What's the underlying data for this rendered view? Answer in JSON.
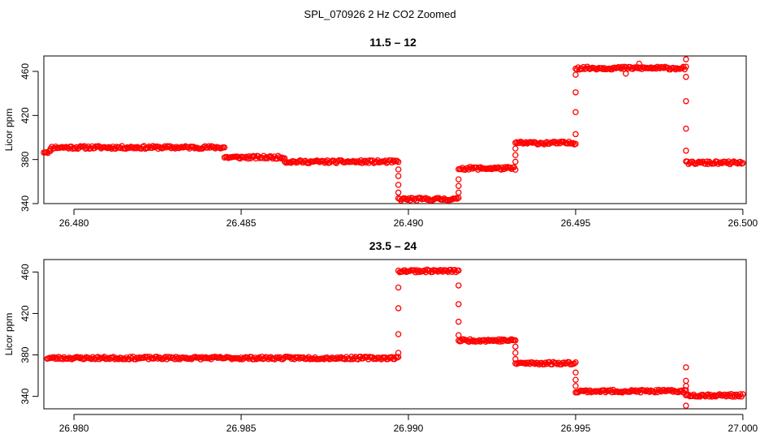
{
  "figure": {
    "suptitle": "SPL_070926  2 Hz CO2 Zoomed"
  },
  "chart_data": [
    {
      "type": "scatter",
      "title": "11.5 – 12",
      "xlabel": "",
      "ylabel": "Licor ppm",
      "xlim": [
        26.4791,
        26.5001
      ],
      "ylim": [
        340,
        474
      ],
      "x_ticks": [
        26.48,
        26.485,
        26.49,
        26.495,
        26.5
      ],
      "x_tick_labels": [
        "26.480",
        "26.485",
        "26.490",
        "26.495",
        "26.500"
      ],
      "y_ticks": [
        340,
        380,
        420,
        460
      ],
      "y_tick_labels": [
        "340",
        "380",
        "420",
        "460"
      ],
      "grid": false,
      "color": "#ff0000",
      "marker": "open-circle",
      "series": [
        {
          "segments": [
            {
              "x_start": 26.4791,
              "x_end": 26.4793,
              "y": 387
            },
            {
              "x_start": 26.4793,
              "x_end": 26.4845,
              "y": 391
            },
            {
              "x_start": 26.4845,
              "x_end": 26.4863,
              "y": 382
            },
            {
              "x_start": 26.4863,
              "x_end": 26.4897,
              "y": 378
            },
            {
              "x_start": 26.4897,
              "x_end": 26.4915,
              "y": 344
            },
            {
              "x_start": 26.4915,
              "x_end": 26.4932,
              "y": 372
            },
            {
              "x_start": 26.4932,
              "x_end": 26.495,
              "y": 395
            },
            {
              "x_start": 26.495,
              "x_end": 26.4983,
              "y": 463
            },
            {
              "x_start": 26.4983,
              "x_end": 26.5,
              "y": 377
            }
          ],
          "transitions": [
            {
              "x": 26.4897,
              "y": [
                371,
                365,
                357,
                350
              ]
            },
            {
              "x": 26.4915,
              "y": [
                350,
                356,
                362
              ]
            },
            {
              "x": 26.4932,
              "y": [
                378,
                384,
                390
              ]
            },
            {
              "x": 26.495,
              "y": [
                403,
                423,
                441,
                457
              ]
            },
            {
              "x": 26.4983,
              "y": [
                471,
                455,
                433,
                408,
                388
              ]
            }
          ],
          "outliers": [
            {
              "x": 26.4965,
              "y": 458
            },
            {
              "x": 26.4969,
              "y": 467
            }
          ]
        }
      ]
    },
    {
      "type": "scatter",
      "title": "23.5 – 24",
      "xlabel": "",
      "ylabel": "Licor ppm",
      "xlim": [
        26.9791,
        27.0001
      ],
      "ylim": [
        328,
        472
      ],
      "x_ticks": [
        26.98,
        26.985,
        26.99,
        26.995,
        27.0
      ],
      "x_tick_labels": [
        "26.980",
        "26.985",
        "26.990",
        "26.995",
        "27.000"
      ],
      "y_ticks": [
        340,
        380,
        420,
        460
      ],
      "y_tick_labels": [
        "340",
        "380",
        "420",
        "460"
      ],
      "grid": false,
      "color": "#ff0000",
      "marker": "open-circle",
      "series": [
        {
          "segments": [
            {
              "x_start": 26.9792,
              "x_end": 26.9897,
              "y": 377
            },
            {
              "x_start": 26.9897,
              "x_end": 26.9915,
              "y": 461
            },
            {
              "x_start": 26.9915,
              "x_end": 26.9932,
              "y": 394
            },
            {
              "x_start": 26.9932,
              "x_end": 26.995,
              "y": 372
            },
            {
              "x_start": 26.995,
              "x_end": 26.9983,
              "y": 345
            },
            {
              "x_start": 26.9983,
              "x_end": 27.0,
              "y": 341
            }
          ],
          "transitions": [
            {
              "x": 26.9897,
              "y": [
                382,
                400,
                425,
                445
              ]
            },
            {
              "x": 26.9915,
              "y": [
                447,
                429,
                412,
                399
              ]
            },
            {
              "x": 26.9932,
              "y": [
                388,
                382,
                376
              ]
            },
            {
              "x": 26.995,
              "y": [
                363,
                356,
                350
              ]
            },
            {
              "x": 26.9983,
              "y": [
                368,
                355,
                350,
                331
              ]
            }
          ],
          "outliers": []
        }
      ]
    }
  ]
}
